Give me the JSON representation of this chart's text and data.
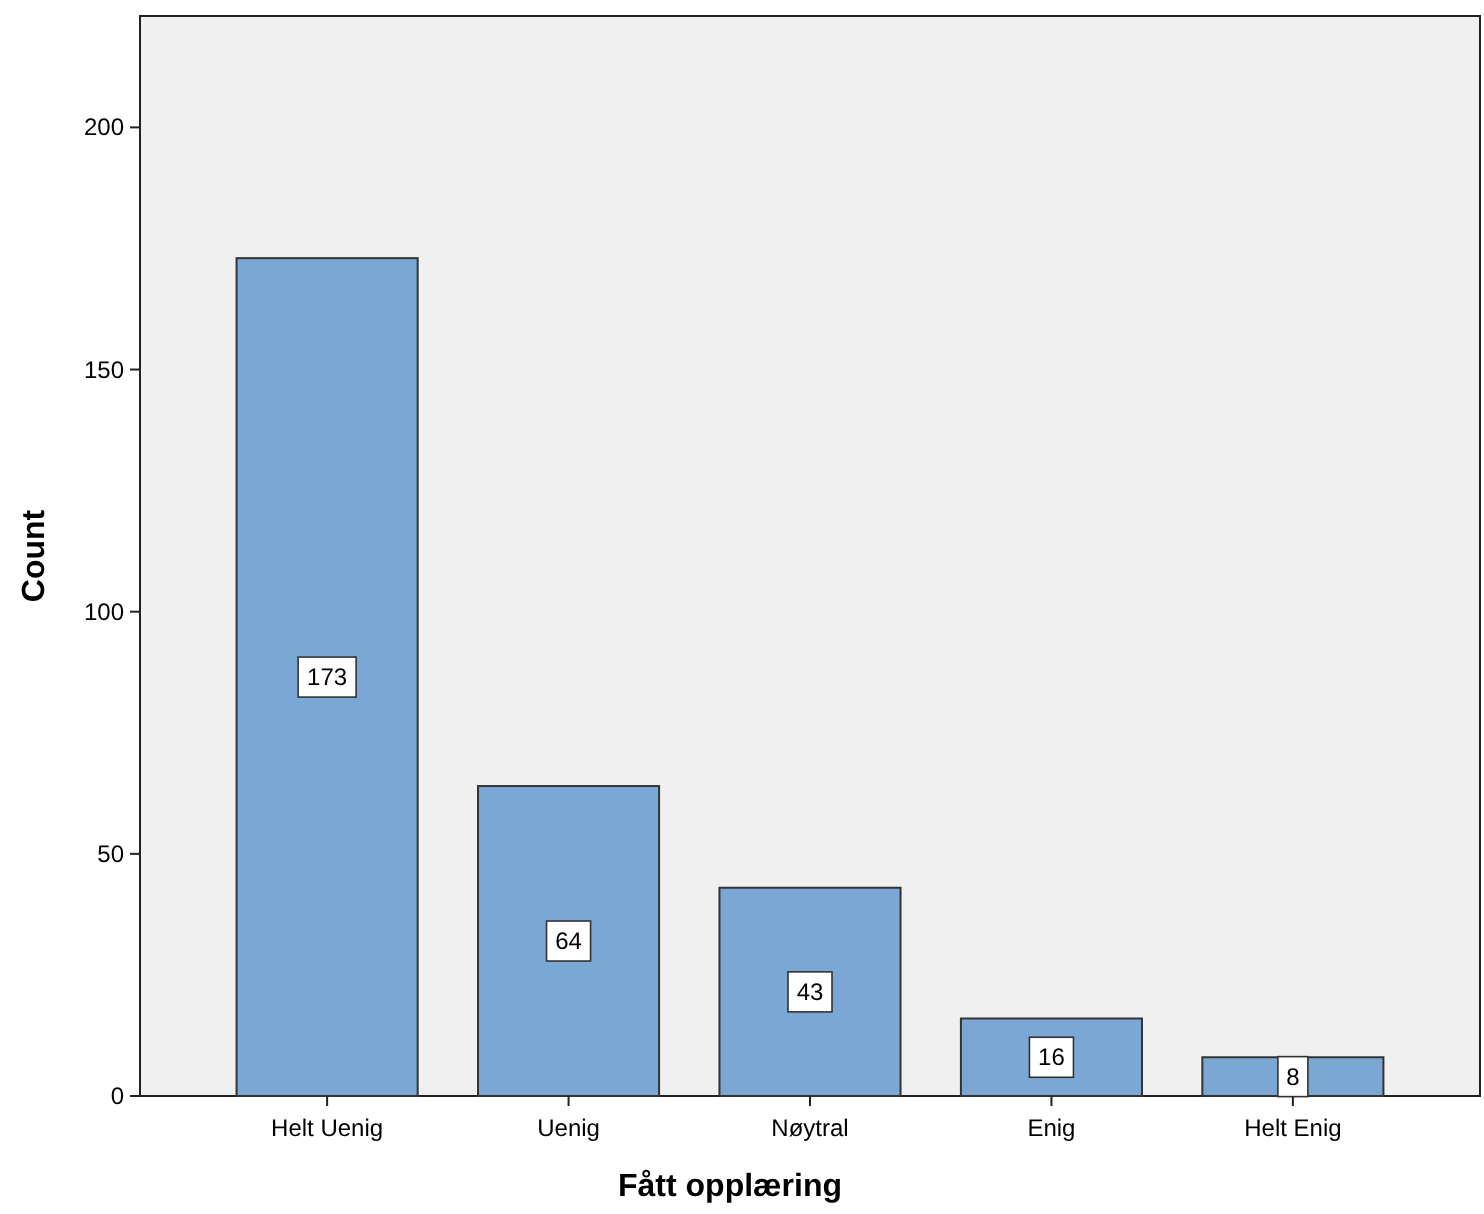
{
  "chart_data": {
    "type": "bar",
    "xlabel": "Fått opplæring",
    "ylabel": "Count",
    "categories": [
      "Helt Uenig",
      "Uenig",
      "Nøytral",
      "Enig",
      "Helt Enig"
    ],
    "values": [
      173,
      64,
      43,
      16,
      8
    ],
    "color": "#7ba7d4",
    "ylim": [
      0,
      223
    ],
    "yticks": [
      0,
      50,
      100,
      150,
      200
    ],
    "grid": false,
    "data_labels": true
  }
}
